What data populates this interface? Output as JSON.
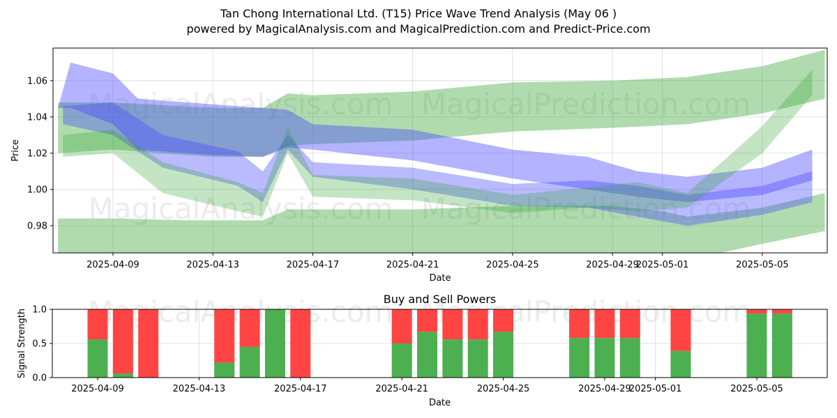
{
  "page": {
    "title_line1": "Tan Chong International Ltd. (T15) Price Wave Trend Analysis (May 06 )",
    "title_line2": "powered by MagicalAnalysis.com and MagicalPrediction.com and Predict-Price.com",
    "watermarks": [
      "MagicalAnalysis.com",
      "MagicalPrediction.com"
    ]
  },
  "colors": {
    "green_band": "#2ca02c",
    "blue_band": "#4a4aff",
    "buy": "#4caf50",
    "sell": "#ff4444",
    "grid": "#d9d9d9",
    "watermark": "#c8c8c8"
  },
  "chart_data": [
    {
      "type": "area",
      "title": "",
      "xlabel": "Date",
      "ylabel": "Price",
      "x_ticks": [
        "2025-04-09",
        "2025-04-13",
        "2025-04-17",
        "2025-04-21",
        "2025-04-25",
        "2025-04-29",
        "2025-05-01",
        "2025-05-05"
      ],
      "y_ticks": [
        "0.98",
        "1.00",
        "1.02",
        "1.04",
        "1.06"
      ],
      "xlim": [
        "2025-04-06.6",
        "2025-05-07.6"
      ],
      "ylim": [
        0.965,
        1.078
      ],
      "grid": true,
      "bands": [
        {
          "color": "green",
          "dates": [
            "2025-04-06.8",
            "2025-04-09",
            "2025-04-12",
            "2025-04-15",
            "2025-04-16",
            "2025-04-21",
            "2025-04-25",
            "2025-04-29",
            "2025-05-01",
            "2025-05-02",
            "2025-05-05",
            "2025-05-07.5"
          ],
          "upper": [
            0.984,
            0.984,
            0.983,
            0.983,
            0.989,
            0.989,
            0.991,
            0.991,
            0.988,
            0.985,
            0.99,
            0.998
          ],
          "lower": [
            0.955,
            0.955,
            0.955,
            0.955,
            0.955,
            0.955,
            0.955,
            0.955,
            0.955,
            0.961,
            0.97,
            0.977
          ]
        },
        {
          "color": "green",
          "dates": [
            "2025-04-06.8",
            "2025-04-09",
            "2025-04-13",
            "2025-04-15",
            "2025-04-16",
            "2025-04-17",
            "2025-04-21",
            "2025-04-25",
            "2025-04-29",
            "2025-05-02",
            "2025-05-05",
            "2025-05-07.5"
          ],
          "upper": [
            1.048,
            1.048,
            1.045,
            1.045,
            1.053,
            1.052,
            1.054,
            1.059,
            1.06,
            1.062,
            1.068,
            1.077
          ],
          "lower": [
            1.02,
            1.022,
            1.018,
            1.018,
            1.024,
            1.025,
            1.027,
            1.032,
            1.034,
            1.036,
            1.042,
            1.05
          ]
        },
        {
          "color": "blue",
          "dates": [
            "2025-04-06.8",
            "2025-04-07.3",
            "2025-04-09",
            "2025-04-10",
            "2025-04-13",
            "2025-04-15",
            "2025-04-16",
            "2025-04-17",
            "2025-04-21",
            "2025-04-25",
            "2025-04-28",
            "2025-04-30",
            "2025-05-02",
            "2025-05-05",
            "2025-05-07"
          ],
          "upper": [
            1.045,
            1.07,
            1.064,
            1.05,
            1.047,
            1.045,
            1.044,
            1.036,
            1.033,
            1.022,
            1.018,
            1.01,
            1.007,
            1.012,
            1.022
          ],
          "lower": [
            1.045,
            1.045,
            1.036,
            1.022,
            1.019,
            1.018,
            1.023,
            1.022,
            1.016,
            1.006,
            1.0,
            0.996,
            0.993,
            0.997,
            1.005
          ]
        },
        {
          "color": "blue",
          "dates": [
            "2025-04-07",
            "2025-04-09",
            "2025-04-11",
            "2025-04-14",
            "2025-04-15",
            "2025-04-16",
            "2025-04-17",
            "2025-04-21",
            "2025-04-25",
            "2025-04-28",
            "2025-04-30",
            "2025-05-02",
            "2025-05-05",
            "2025-05-07"
          ],
          "upper": [
            1.046,
            1.048,
            1.03,
            1.021,
            1.01,
            1.03,
            1.015,
            1.012,
            1.003,
            1.005,
            1.002,
            0.997,
            1.002,
            1.01
          ],
          "lower": [
            1.036,
            1.03,
            1.012,
            1.002,
            0.993,
            1.022,
            1.007,
            1.0,
            0.991,
            0.99,
            0.985,
            0.98,
            0.986,
            0.993
          ]
        },
        {
          "color": "green",
          "dates": [
            "2025-04-07",
            "2025-04-09",
            "2025-04-11",
            "2025-04-14",
            "2025-04-15",
            "2025-04-16",
            "2025-04-17",
            "2025-04-21",
            "2025-04-25",
            "2025-04-28",
            "2025-04-30",
            "2025-05-02",
            "2025-05-05",
            "2025-05-07"
          ],
          "upper": [
            1.03,
            1.033,
            1.015,
            1.004,
            0.998,
            1.034,
            1.008,
            1.006,
            0.997,
            1.001,
            1.004,
            0.998,
            1.035,
            1.066
          ],
          "lower": [
            1.018,
            1.02,
            0.998,
            0.988,
            0.985,
            1.02,
            0.996,
            0.994,
            0.987,
            0.99,
            0.988,
            0.99,
            1.02,
            1.052
          ]
        }
      ]
    },
    {
      "type": "bar",
      "title": "Buy and Sell Powers",
      "xlabel": "Date",
      "ylabel": "Signal Strength",
      "x_ticks": [
        "2025-04-09",
        "2025-04-13",
        "2025-04-17",
        "2025-04-21",
        "2025-04-25",
        "2025-04-29",
        "2025-05-01",
        "2025-05-05"
      ],
      "y_ticks": [
        "0.0",
        "0.5",
        "1.0"
      ],
      "ylim": [
        0,
        1
      ],
      "grid": true,
      "series": [
        {
          "name": "Buy",
          "dates": [
            "2025-04-09",
            "2025-04-10",
            "2025-04-11",
            "2025-04-14",
            "2025-04-15",
            "2025-04-16",
            "2025-04-17",
            "2025-04-21",
            "2025-04-22",
            "2025-04-23",
            "2025-04-24",
            "2025-04-25",
            "2025-04-28",
            "2025-04-29",
            "2025-04-30",
            "2025-05-02",
            "2025-05-05",
            "2025-05-06"
          ],
          "values": [
            0.56,
            0.06,
            0.0,
            0.22,
            0.45,
            1.0,
            0.0,
            0.5,
            0.67,
            0.56,
            0.56,
            0.67,
            0.58,
            0.58,
            0.58,
            0.39,
            0.94,
            0.94
          ]
        },
        {
          "name": "Sell",
          "dates": [
            "2025-04-09",
            "2025-04-10",
            "2025-04-11",
            "2025-04-14",
            "2025-04-15",
            "2025-04-16",
            "2025-04-17",
            "2025-04-21",
            "2025-04-22",
            "2025-04-23",
            "2025-04-24",
            "2025-04-25",
            "2025-04-28",
            "2025-04-29",
            "2025-04-30",
            "2025-05-02",
            "2025-05-05",
            "2025-05-06"
          ],
          "values": [
            0.44,
            0.94,
            1.0,
            0.78,
            0.55,
            0.0,
            1.0,
            0.5,
            0.33,
            0.44,
            0.44,
            0.33,
            0.42,
            0.42,
            0.42,
            0.61,
            0.06,
            0.06
          ]
        }
      ]
    }
  ]
}
